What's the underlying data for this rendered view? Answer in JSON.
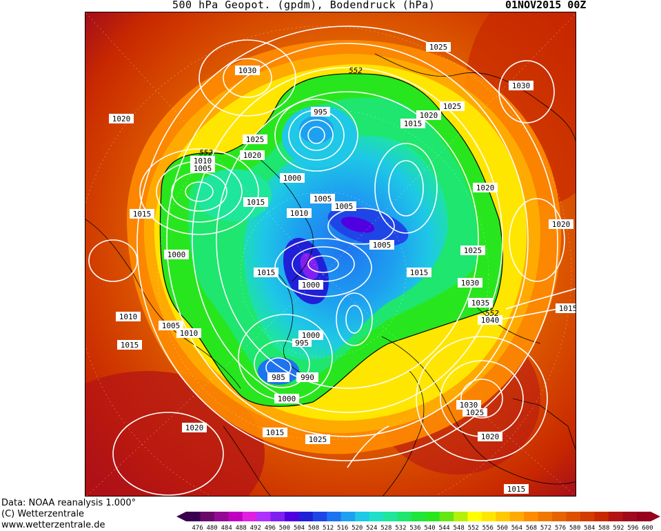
{
  "header": {
    "title": "500 hPa Geopot. (gpdm), Bodendruck (hPa)",
    "datetime": "01NOV2015 00Z"
  },
  "footer": {
    "data_source": "Data: NOAA reanalysis 1.000°",
    "copyright": "(C) Wetterzentrale",
    "website": "www.wetterzentrale.de"
  },
  "colorbar": {
    "levels": [
      "476",
      "480",
      "484",
      "488",
      "492",
      "496",
      "500",
      "504",
      "508",
      "512",
      "516",
      "520",
      "524",
      "528",
      "532",
      "536",
      "540",
      "544",
      "548",
      "552",
      "556",
      "560",
      "564",
      "568",
      "572",
      "576",
      "580",
      "584",
      "588",
      "592",
      "596",
      "600"
    ],
    "colors": [
      "#3a0050",
      "#6a0a6a",
      "#950a95",
      "#c000c0",
      "#e020e0",
      "#b030ff",
      "#8020f0",
      "#5000e0",
      "#2020d8",
      "#1e46e6",
      "#1e73f0",
      "#1ea0f0",
      "#1ec8e6",
      "#1ee0c8",
      "#1ee69b",
      "#1ee66e",
      "#1ee63c",
      "#28e61e",
      "#64e614",
      "#b4f00a",
      "#ffff00",
      "#ffe600",
      "#ffc800",
      "#ffaa00",
      "#ff8c00",
      "#f07800",
      "#e66400",
      "#dc5000",
      "#d23c00",
      "#c82800",
      "#b41414",
      "#a00a1e",
      "#96001e"
    ]
  },
  "map": {
    "isobar_labels": [
      "1030",
      "1025",
      "1020",
      "1015",
      "1010",
      "1005",
      "1000",
      "995",
      "990",
      "985",
      "1035",
      "1040"
    ],
    "height_label": "552",
    "placed_labels": {
      "l1": "1030",
      "l2": "1025",
      "l3": "1020",
      "l4": "1015",
      "l5": "1010",
      "l6": "1005",
      "l7": "1000",
      "l8": "995",
      "l9": "990",
      "l10": "985",
      "l11": "1035",
      "l12": "1040",
      "l13": "552",
      "l14": "1020",
      "l15": "1015",
      "l16": "1025",
      "l17": "1030",
      "l18": "1000",
      "l19": "1005",
      "l20": "1010",
      "l21": "1015",
      "l22": "1020",
      "l23": "1025",
      "l24": "1015",
      "l25": "1010",
      "l26": "1005",
      "l27": "1000",
      "l28": "1015",
      "l29": "1020",
      "l30": "1025",
      "l31": "1030",
      "l32": "1020",
      "l33": "1015",
      "l34": "1005",
      "l35": "1000",
      "l36": "995",
      "l37": "1010",
      "l38": "1005",
      "l39": "1015",
      "l40": "1030",
      "l41": "1025",
      "l42": "1020",
      "l43": "1015",
      "l44": "1000",
      "l45": "552",
      "l46": "552",
      "l47": "1025",
      "l48": "1010",
      "l49": "1000",
      "l50": "1020",
      "l51": "1015"
    }
  }
}
